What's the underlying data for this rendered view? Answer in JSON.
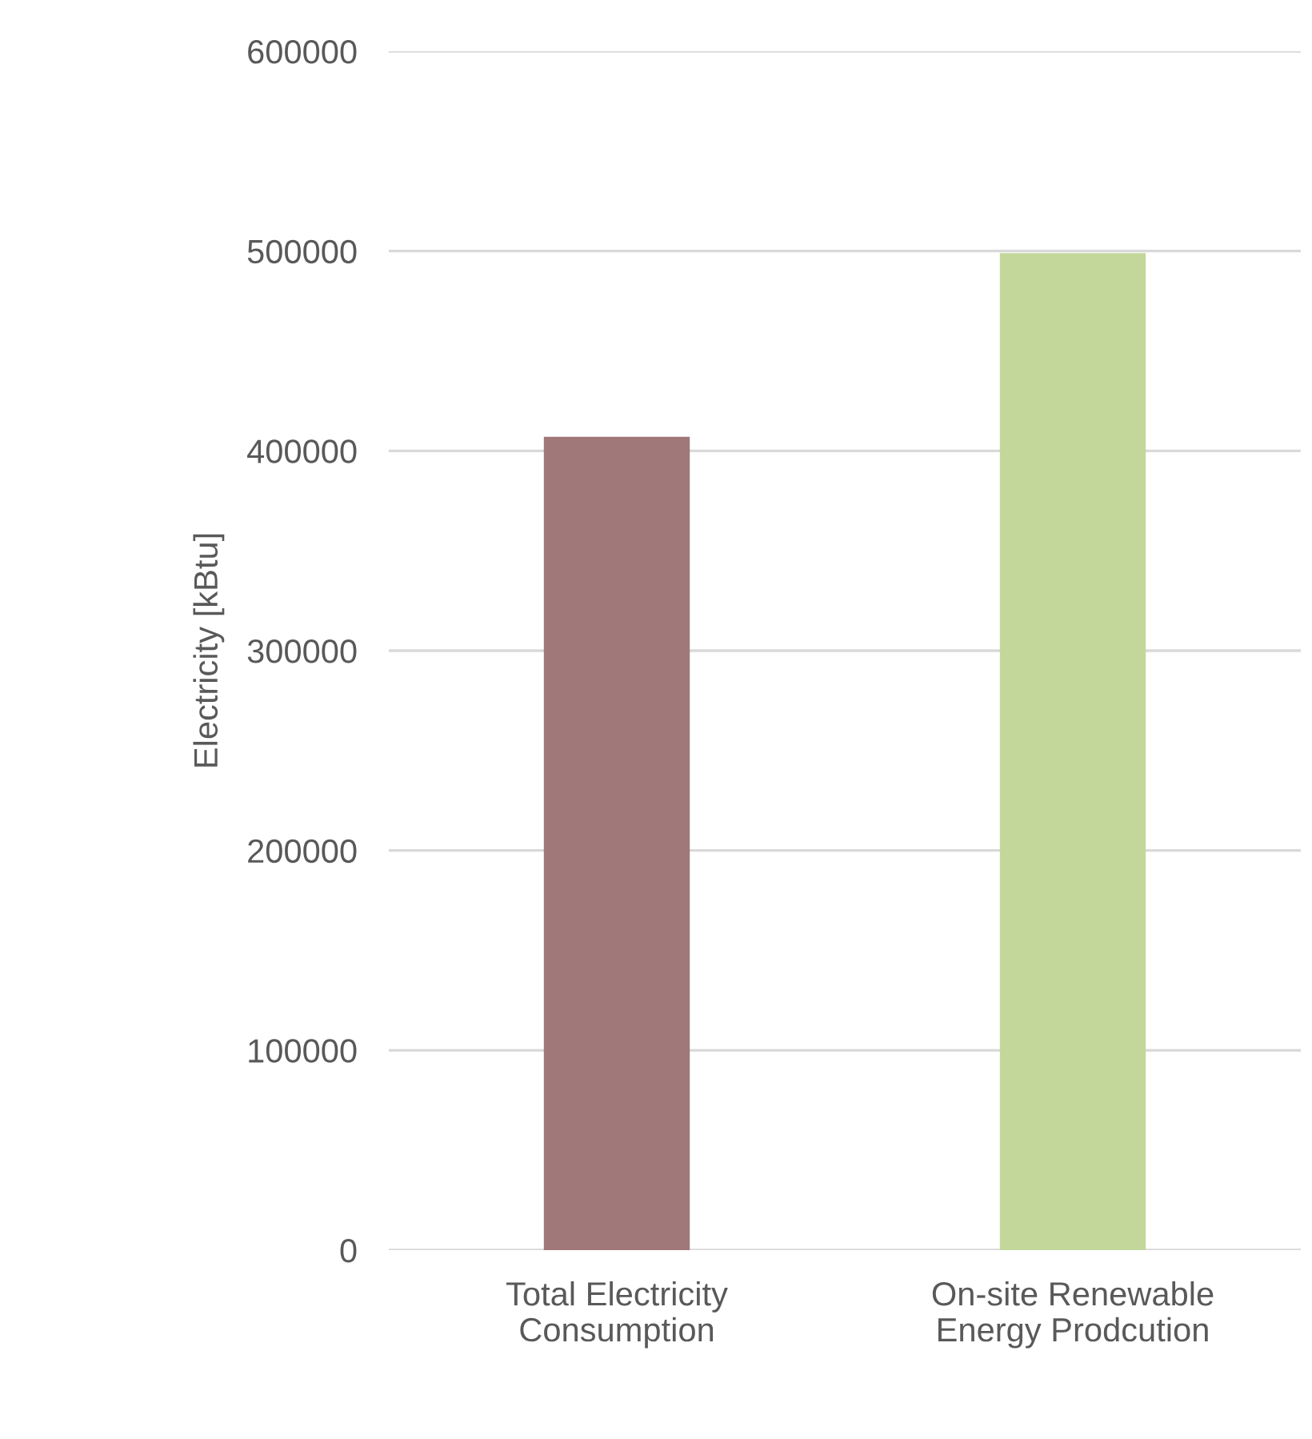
{
  "chart_data": {
    "type": "bar",
    "ylabel": "Electricity [kBtu]",
    "categories": [
      "Total Electricity\nConsumption",
      "On-site Renewable\nEnergy Prodcution"
    ],
    "values": [
      407000,
      499000
    ],
    "colors": [
      "#a0787a",
      "#c4d79b"
    ],
    "ylim": [
      0,
      600000
    ],
    "yticks": [
      0,
      100000,
      200000,
      300000,
      400000,
      500000,
      600000
    ],
    "grid": "y",
    "legend": false
  }
}
